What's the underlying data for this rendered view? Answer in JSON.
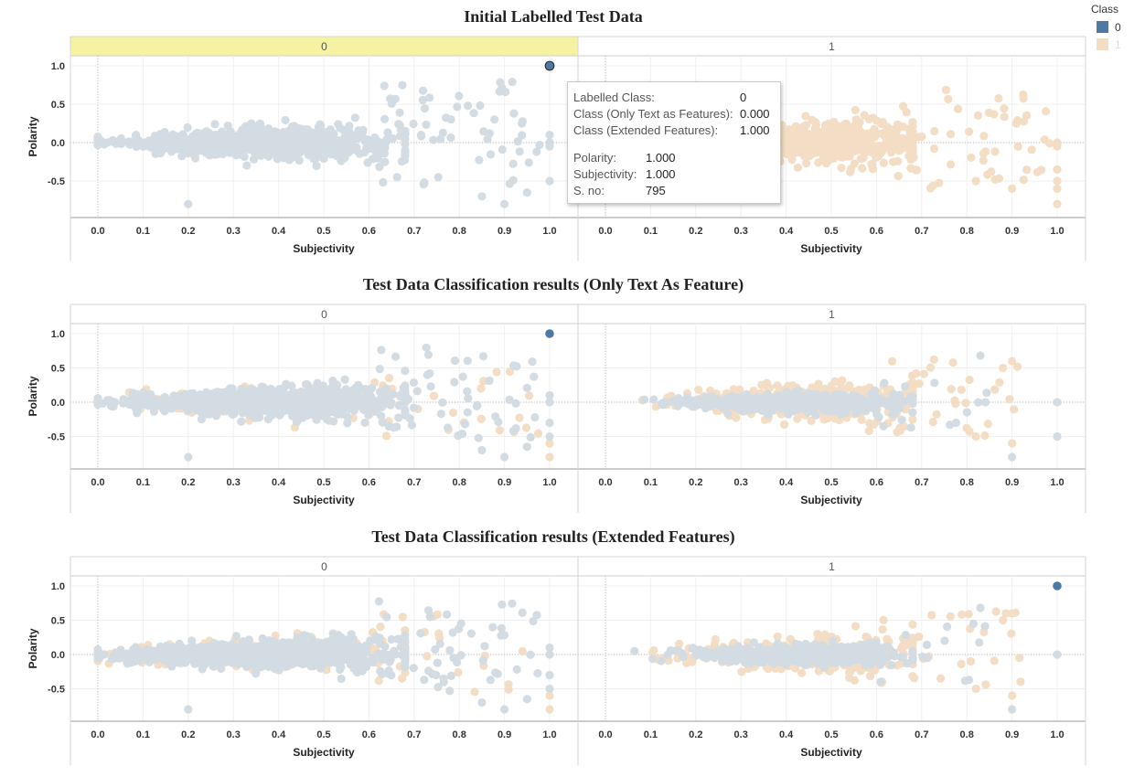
{
  "legend": {
    "title": "Class",
    "items": [
      {
        "label": "0",
        "color": "#4e79a7"
      },
      {
        "label": "1",
        "color": "#f3ddc4"
      }
    ]
  },
  "colors": {
    "class0_point": "#d3dce3",
    "class1_point": "#f3ddc4",
    "highlight_point": "#4e79a7",
    "selected_header": "#f5f3a0"
  },
  "tooltip": {
    "labelled_class_key": "Labelled Class:",
    "labelled_class_val": "0",
    "only_text_key": "Class (Only Text as Features):",
    "only_text_val": "0.000",
    "extended_key": "Class (Extended Features):",
    "extended_val": "1.000",
    "polarity_key": "Polarity:",
    "polarity_val": "1.000",
    "subjectivity_key": "Subjectivity:",
    "subjectivity_val": "1.000",
    "sno_key": "S. no:",
    "sno_val": "795"
  },
  "chart_data": [
    {
      "type": "scatter",
      "title": "Initial Labelled Test Data",
      "xlabel": "Subjectivity",
      "ylabel": "Polarity",
      "xlim": [
        -0.06,
        1.06
      ],
      "ylim": [
        -1.1,
        1.1
      ],
      "xticks": [
        "0.0",
        "0.1",
        "0.2",
        "0.3",
        "0.4",
        "0.5",
        "0.6",
        "0.7",
        "0.8",
        "0.9",
        "1.0"
      ],
      "yticks": [
        "1.0",
        "0.5",
        "0.0",
        "-0.5"
      ],
      "panels": [
        {
          "header": "0",
          "selected": true,
          "mode": "panel0",
          "highlight": {
            "x": 1.0,
            "y": 1.0,
            "outlined": true
          }
        },
        {
          "header": "1",
          "selected": false,
          "mode": "panel1"
        }
      ]
    },
    {
      "type": "scatter",
      "title": "Test Data Classification results (Only Text As Feature)",
      "xlabel": "Subjectivity",
      "ylabel": "Polarity",
      "xlim": [
        -0.06,
        1.06
      ],
      "ylim": [
        -1.1,
        1.1
      ],
      "xticks": [
        "0.0",
        "0.1",
        "0.2",
        "0.3",
        "0.4",
        "0.5",
        "0.6",
        "0.7",
        "0.8",
        "0.9",
        "1.0"
      ],
      "yticks": [
        "1.0",
        "0.5",
        "0.0",
        "-0.5"
      ],
      "panels": [
        {
          "header": "0",
          "selected": false,
          "mode": "mixed0",
          "highlight": {
            "x": 1.0,
            "y": 1.0,
            "outlined": false
          }
        },
        {
          "header": "1",
          "selected": false,
          "mode": "mixed1"
        }
      ]
    },
    {
      "type": "scatter",
      "title": "Test Data Classification results (Extended Features)",
      "xlabel": "Subjectivity",
      "ylabel": "Polarity",
      "xlim": [
        -0.06,
        1.06
      ],
      "ylim": [
        -1.1,
        1.1
      ],
      "xticks": [
        "0.0",
        "0.1",
        "0.2",
        "0.3",
        "0.4",
        "0.5",
        "0.6",
        "0.7",
        "0.8",
        "0.9",
        "1.0"
      ],
      "yticks": [
        "1.0",
        "0.5",
        "0.0",
        "-0.5"
      ],
      "panels": [
        {
          "header": "0",
          "selected": false,
          "mode": "mixed0b"
        },
        {
          "header": "1",
          "selected": false,
          "mode": "mixed1b",
          "highlight": {
            "x": 1.0,
            "y": 1.0,
            "outlined": false
          }
        }
      ]
    }
  ]
}
